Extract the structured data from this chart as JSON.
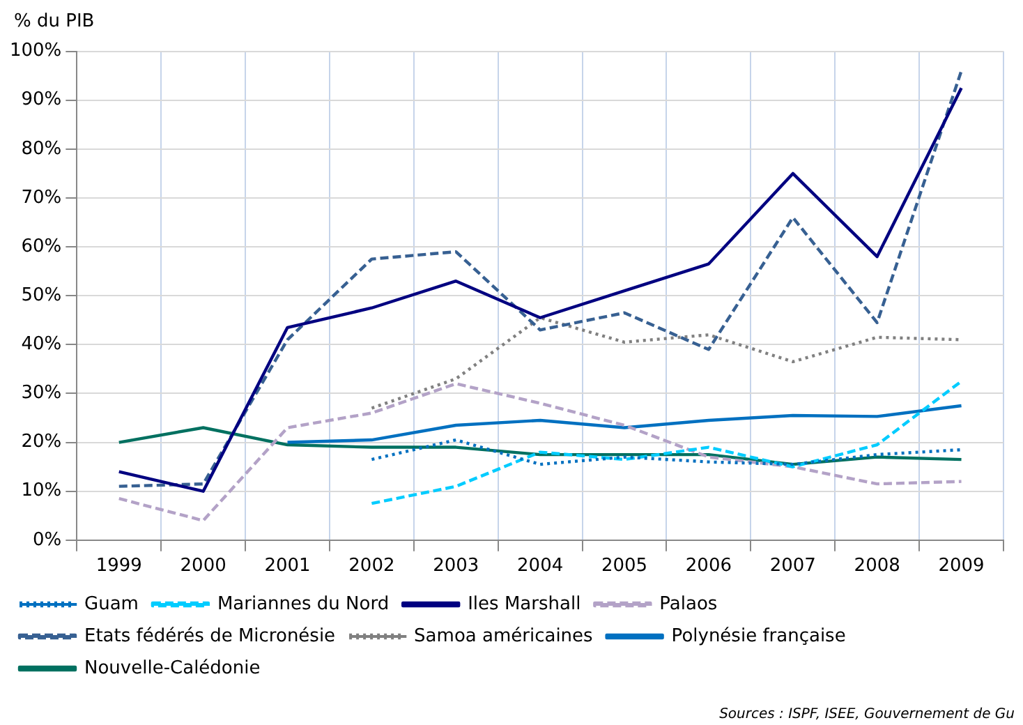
{
  "chart_data": {
    "type": "line",
    "ylabel": "% du PIB",
    "categories": [
      "1999",
      "2000",
      "2001",
      "2002",
      "2003",
      "2004",
      "2005",
      "2006",
      "2007",
      "2008",
      "2009"
    ],
    "ylim": [
      0,
      100
    ],
    "yticks": [
      {
        "value": 0,
        "label": "0%"
      },
      {
        "value": 10,
        "label": "10%"
      },
      {
        "value": 20,
        "label": "20%"
      },
      {
        "value": 30,
        "label": "30%"
      },
      {
        "value": 40,
        "label": "40%"
      },
      {
        "value": 50,
        "label": "50%"
      },
      {
        "value": 60,
        "label": "60%"
      },
      {
        "value": 70,
        "label": "70%"
      },
      {
        "value": 80,
        "label": "80%"
      },
      {
        "value": 90,
        "label": "90%"
      },
      {
        "value": 100,
        "label": "100%"
      }
    ],
    "grid": true,
    "legend": "bottom",
    "marker": "none",
    "series": [
      {
        "name": "Guam",
        "color": "#0070c0",
        "line_style": "dotted",
        "values": [
          null,
          null,
          null,
          16.5,
          20.5,
          15.5,
          17,
          16,
          15.5,
          17.5,
          18.5
        ]
      },
      {
        "name": "Mariannes du Nord",
        "color": "#00ccff",
        "line_style": "dashed",
        "values": [
          null,
          null,
          null,
          7.5,
          11,
          18,
          16.5,
          19,
          15,
          19.5,
          32.5
        ]
      },
      {
        "name": "Iles Marshall",
        "color": "#000080",
        "line_style": "solid",
        "values": [
          14,
          10,
          43.5,
          47.5,
          53,
          45.5,
          51,
          56.5,
          75,
          58,
          92.5
        ]
      },
      {
        "name": "Palaos",
        "color": "#b3a2c7",
        "line_style": "dashed",
        "values": [
          8.5,
          4,
          23,
          26,
          32,
          28,
          23.5,
          17,
          15,
          11.5,
          12
        ]
      },
      {
        "name": "Etats fédérés de Micronésie",
        "color": "#376092",
        "line_style": "dashed",
        "values": [
          11,
          11.5,
          41,
          57.5,
          59,
          43,
          46.5,
          39,
          66,
          44.5,
          96
        ]
      },
      {
        "name": "Samoa américaines",
        "color": "#808080",
        "line_style": "dotted",
        "values": [
          null,
          null,
          null,
          27,
          33,
          45.5,
          40.5,
          42,
          36.5,
          41.5,
          41
        ]
      },
      {
        "name": "Polynésie française",
        "color": "#0070c0",
        "line_style": "solid",
        "values": [
          null,
          null,
          20,
          20.5,
          23.5,
          24.5,
          23,
          24.5,
          25.5,
          25.3,
          27.5
        ]
      },
      {
        "name": "Nouvelle-Calédonie",
        "color": "#007060",
        "line_style": "solid",
        "values": [
          20,
          23,
          19.5,
          19,
          19,
          17.5,
          17.5,
          17.5,
          15.5,
          17,
          16.5
        ]
      }
    ],
    "annotations": [
      "Sources : ISPF, ISEE, Gouvernement de Gu"
    ]
  }
}
